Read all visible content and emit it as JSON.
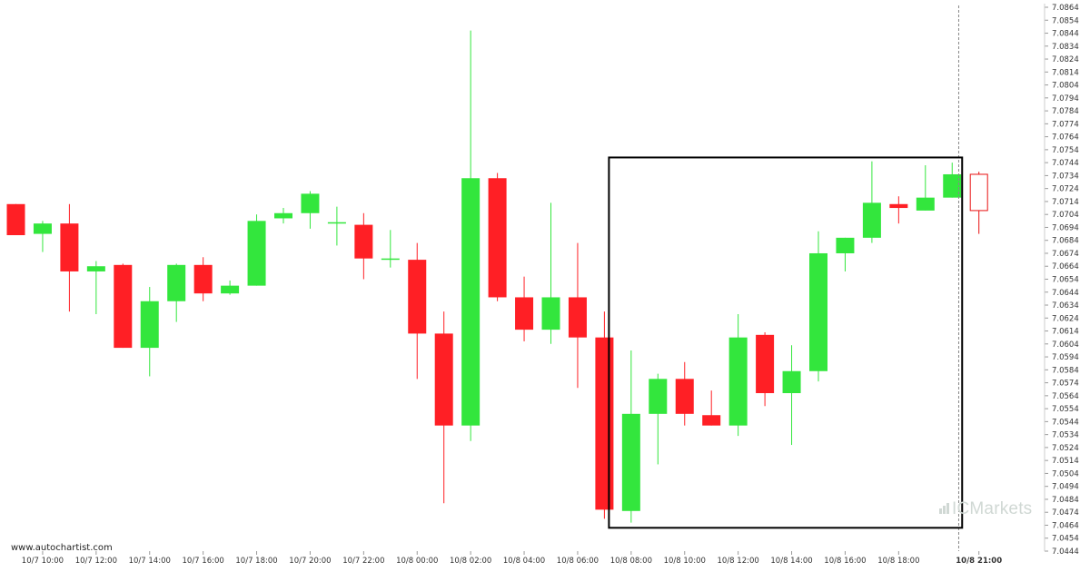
{
  "chart_data": {
    "type": "candlestick",
    "ylim": [
      7.0444,
      7.0864
    ],
    "y_ticks": [
      "7.0864",
      "7.0854",
      "7.0844",
      "7.0834",
      "7.0824",
      "7.0814",
      "7.0804",
      "7.0794",
      "7.0784",
      "7.0774",
      "7.0764",
      "7.0754",
      "7.0744",
      "7.0734",
      "7.0724",
      "7.0714",
      "7.0704",
      "7.0694",
      "7.0684",
      "7.0674",
      "7.0664",
      "7.0654",
      "7.0644",
      "7.0634",
      "7.0624",
      "7.0614",
      "7.0604",
      "7.0594",
      "7.0584",
      "7.0574",
      "7.0564",
      "7.0554",
      "7.0544",
      "7.0534",
      "7.0524",
      "7.0514",
      "7.0504",
      "7.0494",
      "7.0484",
      "7.0474",
      "7.0464",
      "7.0454",
      "7.0444"
    ],
    "x_labels": [
      "10/7 10:00",
      "10/7 12:00",
      "10/7 14:00",
      "10/7 16:00",
      "10/7 18:00",
      "10/7 20:00",
      "10/7 22:00",
      "10/8 00:00",
      "10/8 02:00",
      "10/8 04:00",
      "10/8 06:00",
      "10/8 08:00",
      "10/8 10:00",
      "10/8 12:00",
      "10/8 14:00",
      "10/8 16:00",
      "10/8 18:00",
      "10/8 21:00"
    ],
    "current_label": "10/8 21:00",
    "candles": [
      {
        "time": "10/7 09:00",
        "open": 7.0712,
        "high": 7.0712,
        "low": 7.0688,
        "close": 7.0688
      },
      {
        "time": "10/7 10:00",
        "open": 7.0689,
        "high": 7.0699,
        "low": 7.0675,
        "close": 7.0697
      },
      {
        "time": "10/7 11:00",
        "open": 7.0697,
        "high": 7.0712,
        "low": 7.0629,
        "close": 7.066
      },
      {
        "time": "10/7 12:00",
        "open": 7.066,
        "high": 7.0668,
        "low": 7.0627,
        "close": 7.0664
      },
      {
        "time": "10/7 13:00",
        "open": 7.0665,
        "high": 7.0666,
        "low": 7.0601,
        "close": 7.0601
      },
      {
        "time": "10/7 14:00",
        "open": 7.0601,
        "high": 7.0648,
        "low": 7.0579,
        "close": 7.0637
      },
      {
        "time": "10/7 15:00",
        "open": 7.0637,
        "high": 7.0666,
        "low": 7.0621,
        "close": 7.0665
      },
      {
        "time": "10/7 16:00",
        "open": 7.0665,
        "high": 7.0671,
        "low": 7.0637,
        "close": 7.0643
      },
      {
        "time": "10/7 17:00",
        "open": 7.0643,
        "high": 7.0653,
        "low": 7.0642,
        "close": 7.0649
      },
      {
        "time": "10/7 18:00",
        "open": 7.0649,
        "high": 7.0704,
        "low": 7.0649,
        "close": 7.0699
      },
      {
        "time": "10/7 19:00",
        "open": 7.0701,
        "high": 7.0709,
        "low": 7.0697,
        "close": 7.0705
      },
      {
        "time": "10/7 20:00",
        "open": 7.0705,
        "high": 7.0722,
        "low": 7.0693,
        "close": 7.072
      },
      {
        "time": "10/7 21:00",
        "open": 7.0697,
        "high": 7.071,
        "low": 7.068,
        "close": 7.0698
      },
      {
        "time": "10/7 22:00",
        "open": 7.0696,
        "high": 7.0705,
        "low": 7.0654,
        "close": 7.067
      },
      {
        "time": "10/7 23:00",
        "open": 7.0669,
        "high": 7.0692,
        "low": 7.0663,
        "close": 7.067
      },
      {
        "time": "10/8 00:00",
        "open": 7.0669,
        "high": 7.0682,
        "low": 7.0577,
        "close": 7.0612
      },
      {
        "time": "10/8 01:00",
        "open": 7.0612,
        "high": 7.0629,
        "low": 7.0481,
        "close": 7.0541
      },
      {
        "time": "10/8 02:00",
        "open": 7.0541,
        "high": 7.0846,
        "low": 7.0529,
        "close": 7.0732
      },
      {
        "time": "10/8 03:00",
        "open": 7.0732,
        "high": 7.0736,
        "low": 7.0637,
        "close": 7.064
      },
      {
        "time": "10/8 04:00",
        "open": 7.064,
        "high": 7.0656,
        "low": 7.0606,
        "close": 7.0615
      },
      {
        "time": "10/8 05:00",
        "open": 7.0615,
        "high": 7.0713,
        "low": 7.0604,
        "close": 7.064
      },
      {
        "time": "10/8 06:00",
        "open": 7.064,
        "high": 7.0682,
        "low": 7.057,
        "close": 7.0609
      },
      {
        "time": "10/8 07:00",
        "open": 7.0609,
        "high": 7.0629,
        "low": 7.0469,
        "close": 7.0476
      },
      {
        "time": "10/8 08:00",
        "open": 7.0475,
        "high": 7.0599,
        "low": 7.0466,
        "close": 7.055
      },
      {
        "time": "10/8 09:00",
        "open": 7.055,
        "high": 7.0581,
        "low": 7.0511,
        "close": 7.0577
      },
      {
        "time": "10/8 10:00",
        "open": 7.0577,
        "high": 7.059,
        "low": 7.0541,
        "close": 7.055
      },
      {
        "time": "10/8 11:00",
        "open": 7.0549,
        "high": 7.0568,
        "low": 7.0541,
        "close": 7.0541
      },
      {
        "time": "10/8 12:00",
        "open": 7.0541,
        "high": 7.0627,
        "low": 7.0533,
        "close": 7.0609
      },
      {
        "time": "10/8 13:00",
        "open": 7.0611,
        "high": 7.0613,
        "low": 7.0556,
        "close": 7.0566
      },
      {
        "time": "10/8 14:00",
        "open": 7.0566,
        "high": 7.0603,
        "low": 7.0526,
        "close": 7.0583
      },
      {
        "time": "10/8 15:00",
        "open": 7.0583,
        "high": 7.0691,
        "low": 7.0575,
        "close": 7.0674
      },
      {
        "time": "10/8 16:00",
        "open": 7.0674,
        "high": 7.0686,
        "low": 7.066,
        "close": 7.0686
      },
      {
        "time": "10/8 17:00",
        "open": 7.0686,
        "high": 7.0745,
        "low": 7.0682,
        "close": 7.0713
      },
      {
        "time": "10/8 18:00",
        "open": 7.0712,
        "high": 7.0718,
        "low": 7.0697,
        "close": 7.0709
      },
      {
        "time": "10/8 19:00",
        "open": 7.0707,
        "high": 7.0742,
        "low": 7.0707,
        "close": 7.0717
      },
      {
        "time": "10/8 20:00",
        "open": 7.0717,
        "high": 7.0744,
        "low": 7.0717,
        "close": 7.0735
      },
      {
        "time": "10/8 21:00",
        "open": 7.0735,
        "high": 7.0737,
        "low": 7.0689,
        "close": 7.0707
      }
    ],
    "box": {
      "from": "10/8 07:00",
      "to": "10/8 20:00",
      "high": 7.0748,
      "low": 7.0462
    },
    "colors": {
      "up": "#33e63d",
      "down": "#ff1f25",
      "current_outline": "#e81010",
      "box": "#000000",
      "grid": "#e6e6e6"
    }
  },
  "footer": {
    "watermark": "www.autochartist.com",
    "brand": "ICMarkets"
  }
}
